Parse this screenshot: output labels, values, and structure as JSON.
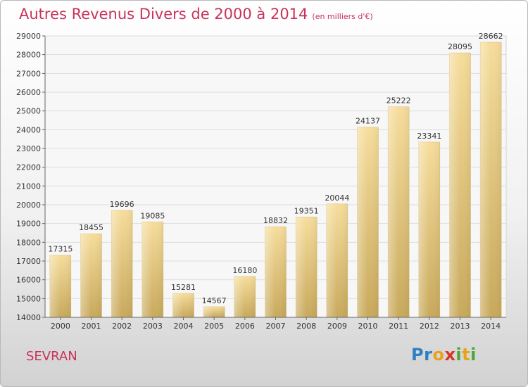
{
  "header": {
    "title": "Autres Revenus Divers de 2000 à 2014",
    "unit": "(en milliers d'€)"
  },
  "footer": {
    "commune": "SEVRAN",
    "logo_letters": [
      {
        "ch": "P",
        "color": "#2e7fc1"
      },
      {
        "ch": "r",
        "color": "#2e7fc1"
      },
      {
        "ch": "o",
        "color": "#e8a21c"
      },
      {
        "ch": "x",
        "color": "#d8352a"
      },
      {
        "ch": "i",
        "color": "#4aa63c"
      },
      {
        "ch": "t",
        "color": "#e8a21c"
      },
      {
        "ch": "i",
        "color": "#4aa63c"
      }
    ]
  },
  "chart_data": {
    "type": "bar",
    "title": "Autres Revenus Divers de 2000 à 2014",
    "categories": [
      "2000",
      "2001",
      "2002",
      "2003",
      "2004",
      "2005",
      "2006",
      "2007",
      "2008",
      "2009",
      "2010",
      "2011",
      "2012",
      "2013",
      "2014"
    ],
    "values": [
      17315,
      18455,
      19696,
      19085,
      15281,
      14567,
      16180,
      18832,
      19351,
      20044,
      24137,
      25222,
      23341,
      28095,
      28662
    ],
    "ylim": [
      14000,
      29000
    ],
    "yticks": [
      14000,
      15000,
      16000,
      17000,
      18000,
      19000,
      20000,
      21000,
      22000,
      23000,
      24000,
      25000,
      26000,
      27000,
      28000,
      29000
    ],
    "grid": true,
    "bar_color": "#e6c77f"
  }
}
